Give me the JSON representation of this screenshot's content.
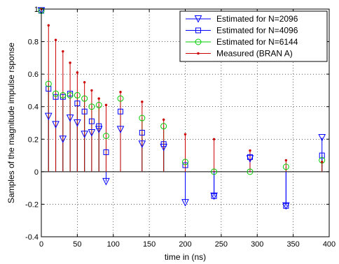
{
  "chart_data": {
    "type": "stem",
    "title": "",
    "xlabel": "time in (ns)",
    "ylabel": "Samples of the magnitude impulse rsponse",
    "xlim": [
      0,
      400
    ],
    "ylim": [
      -0.4,
      1.0
    ],
    "x_ticks": [
      0,
      50,
      100,
      150,
      200,
      250,
      300,
      350,
      400
    ],
    "y_ticks": [
      -0.4,
      -0.2,
      0,
      0.2,
      0.4,
      0.6,
      0.8,
      1
    ],
    "grid": true,
    "grid_style": "dotted",
    "legend_position": "top-right",
    "series": [
      {
        "name": "Estimated for N=2096",
        "color": "#0000ff",
        "marker": "triangle-down",
        "x": [
          0,
          10,
          20,
          30,
          40,
          50,
          60,
          70,
          80,
          90,
          110,
          140,
          170,
          200,
          240,
          290,
          340,
          390
        ],
        "values": [
          0.99,
          0.34,
          0.29,
          0.2,
          0.33,
          0.3,
          0.23,
          0.24,
          0.26,
          -0.06,
          0.26,
          0.17,
          0.15,
          -0.19,
          -0.15,
          0.08,
          -0.21,
          0.21
        ]
      },
      {
        "name": "Estimated for N=4096",
        "color": "#0000ff",
        "marker": "square",
        "x": [
          0,
          10,
          20,
          30,
          40,
          50,
          60,
          70,
          80,
          90,
          110,
          140,
          170,
          200,
          240,
          290,
          340,
          390
        ],
        "values": [
          0.99,
          0.51,
          0.46,
          0.46,
          0.48,
          0.42,
          0.37,
          0.31,
          0.28,
          0.12,
          0.37,
          0.24,
          0.17,
          0.04,
          -0.15,
          0.09,
          -0.21,
          0.1
        ]
      },
      {
        "name": "Estimated for N=6144",
        "color": "#00cc00",
        "marker": "circle",
        "x": [
          0,
          10,
          20,
          30,
          40,
          50,
          60,
          70,
          80,
          90,
          110,
          140,
          170,
          200,
          240,
          290,
          340,
          390
        ],
        "values": [
          0.99,
          0.54,
          0.48,
          0.47,
          0.47,
          0.47,
          0.45,
          0.4,
          0.41,
          0.22,
          0.45,
          0.33,
          0.28,
          0.06,
          0.0,
          0.0,
          0.03,
          0.07
        ]
      },
      {
        "name": "Measured (BRAN A)",
        "color": "#cc0000",
        "marker": "dot",
        "x": [
          0,
          10,
          20,
          30,
          40,
          50,
          60,
          70,
          80,
          90,
          110,
          140,
          170,
          200,
          240,
          290,
          340,
          390
        ],
        "values": [
          1.0,
          0.9,
          0.81,
          0.74,
          0.67,
          0.61,
          0.55,
          0.5,
          0.45,
          0.41,
          0.49,
          0.43,
          0.32,
          0.23,
          0.2,
          0.13,
          0.07,
          0.06
        ]
      }
    ]
  }
}
